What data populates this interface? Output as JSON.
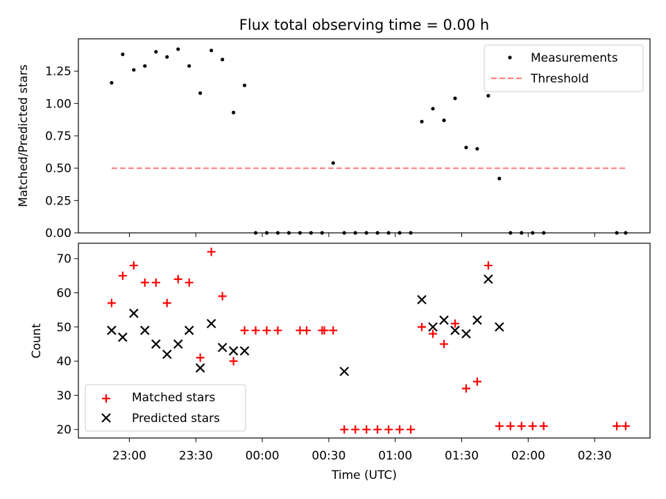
{
  "chart_data": [
    {
      "type": "scatter",
      "title": "Flux total observing time = 0.00 h",
      "xlabel": "",
      "ylabel": "Matched/Predicted stars",
      "xlim": [
        "22:37",
        "02:55"
      ],
      "ylim": [
        0,
        1.5
      ],
      "yticks": [
        "0.00",
        "0.25",
        "0.50",
        "0.75",
        "1.00",
        "1.25"
      ],
      "yticks_values": [
        0,
        0.25,
        0.5,
        0.75,
        1.0,
        1.25
      ],
      "legend": {
        "placement": "top-right",
        "entries": [
          "Measurements",
          "Threshold"
        ]
      },
      "series": [
        {
          "name": "Measurements",
          "marker": "dot",
          "color": "#000000",
          "x": [
            "22:52",
            "22:57",
            "23:02",
            "23:07",
            "23:12",
            "23:17",
            "23:22",
            "23:27",
            "23:32",
            "23:37",
            "23:42",
            "23:47",
            "23:52",
            "23:57",
            "00:02",
            "00:07",
            "00:12",
            "00:17",
            "00:22",
            "00:27",
            "00:32",
            "00:37",
            "00:42",
            "00:47",
            "00:52",
            "00:57",
            "01:02",
            "01:07",
            "01:12",
            "01:17",
            "01:22",
            "01:27",
            "01:32",
            "01:37",
            "01:42",
            "01:47",
            "01:52",
            "01:57",
            "02:02",
            "02:07",
            "02:40",
            "02:44"
          ],
          "y": [
            1.16,
            1.38,
            1.26,
            1.29,
            1.4,
            1.36,
            1.42,
            1.29,
            1.08,
            1.41,
            1.34,
            0.93,
            1.14,
            0,
            0,
            0,
            0,
            0,
            0,
            0,
            0.54,
            0,
            0,
            0,
            0,
            0,
            0,
            0,
            0.86,
            0.96,
            0.87,
            1.04,
            0.66,
            0.65,
            1.06,
            0.42,
            0,
            0,
            0,
            0,
            0,
            0
          ]
        },
        {
          "name": "Threshold",
          "style": "dashed",
          "color": "#ff7f7f",
          "x": [
            "22:52",
            "02:44"
          ],
          "y": [
            0.5,
            0.5
          ]
        }
      ]
    },
    {
      "type": "scatter",
      "title": "",
      "xlabel": "Time (UTC)",
      "ylabel": "Count",
      "xlim": [
        "22:37",
        "02:55"
      ],
      "ylim": [
        17.5,
        74.5
      ],
      "xticks": [
        "23:00",
        "23:30",
        "00:00",
        "00:30",
        "01:00",
        "01:30",
        "02:00",
        "02:30"
      ],
      "yticks": [
        "20",
        "30",
        "40",
        "50",
        "60",
        "70"
      ],
      "yticks_values": [
        20,
        30,
        40,
        50,
        60,
        70
      ],
      "legend": {
        "placement": "bottom-left",
        "entries": [
          "Matched stars",
          "Predicted stars"
        ]
      },
      "series": [
        {
          "name": "Matched stars",
          "marker": "plus",
          "color": "#ff0000",
          "x": [
            "22:52",
            "22:57",
            "23:02",
            "23:07",
            "23:12",
            "23:17",
            "23:22",
            "23:27",
            "23:32",
            "23:37",
            "23:42",
            "23:47",
            "23:52",
            "23:57",
            "00:02",
            "00:07",
            "00:17",
            "00:20",
            "00:27",
            "00:28",
            "00:32",
            "00:37",
            "00:42",
            "00:47",
            "00:52",
            "00:57",
            "01:02",
            "01:07",
            "01:12",
            "01:17",
            "01:22",
            "01:27",
            "01:32",
            "01:37",
            "01:42",
            "01:47",
            "01:52",
            "01:57",
            "02:02",
            "02:07",
            "02:40",
            "02:44"
          ],
          "y": [
            57,
            65,
            68,
            63,
            63,
            57,
            64,
            63,
            41,
            72,
            59,
            40,
            49,
            49,
            49,
            49,
            49,
            49,
            49,
            49,
            49,
            20,
            20,
            20,
            20,
            20,
            20,
            20,
            50,
            48,
            45,
            51,
            32,
            34,
            68,
            21,
            21,
            21,
            21,
            21,
            21,
            21
          ]
        },
        {
          "name": "Predicted stars",
          "marker": "x",
          "color": "#000000",
          "x": [
            "22:52",
            "22:57",
            "23:02",
            "23:07",
            "23:12",
            "23:17",
            "23:22",
            "23:27",
            "23:32",
            "23:37",
            "23:42",
            "23:47",
            "23:52",
            "00:37",
            "01:12",
            "01:17",
            "01:22",
            "01:27",
            "01:32",
            "01:37",
            "01:42",
            "01:47"
          ],
          "y": [
            49,
            47,
            54,
            49,
            45,
            42,
            45,
            49,
            38,
            51,
            44,
            43,
            43,
            37,
            58,
            50,
            52,
            49,
            48,
            52,
            64,
            50
          ]
        }
      ]
    }
  ]
}
